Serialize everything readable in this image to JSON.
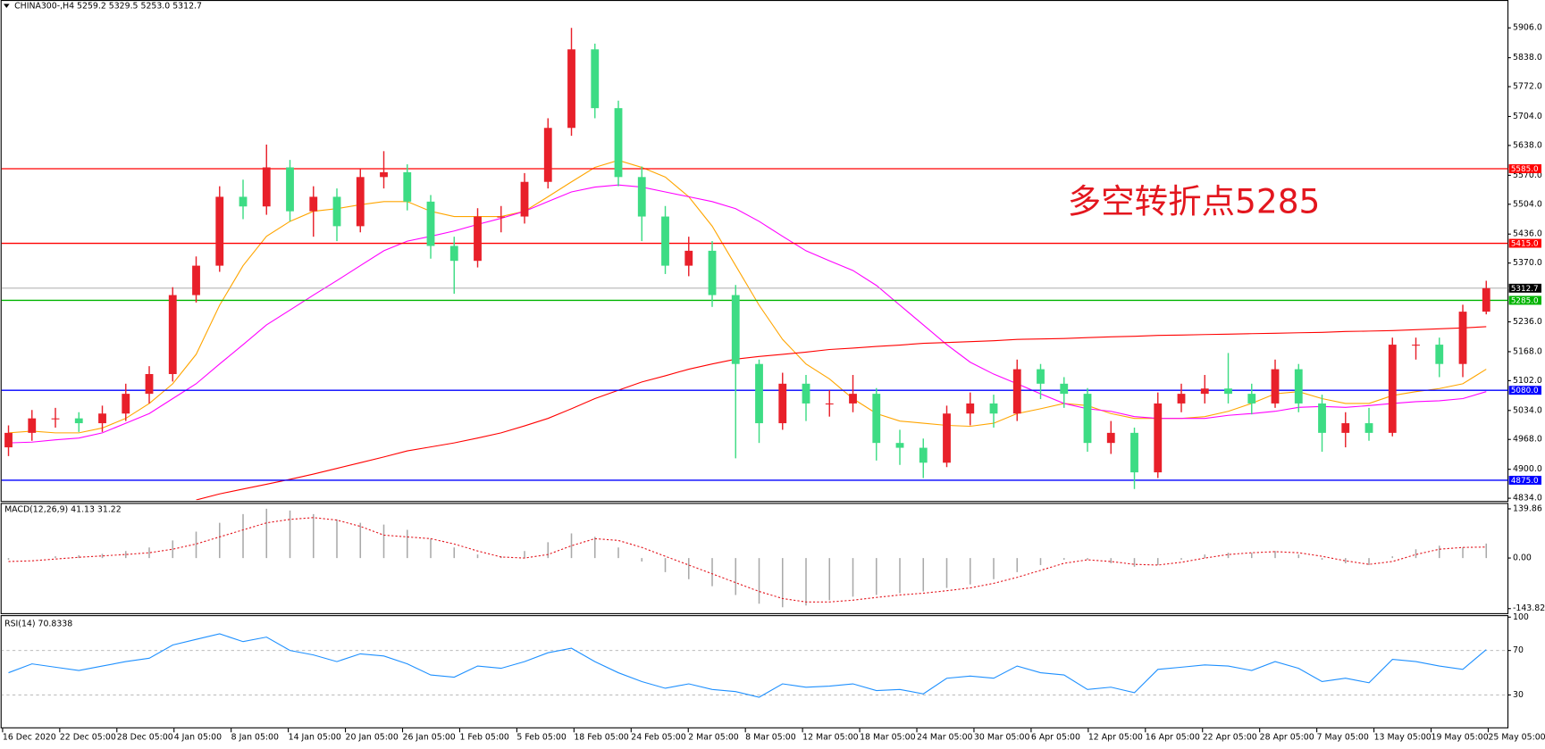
{
  "chart_data": [
    {
      "type": "candlestick",
      "title": "CHINA300-,H4  5259.2 5329.5 5253.0 5312.7",
      "annotation": "多空转折点5285",
      "x_labels": [
        "16 Dec 2020",
        "22 Dec 05:00",
        "28 Dec 05:00",
        "4 Jan 05:00",
        "8 Jan 05:00",
        "14 Jan 05:00",
        "20 Jan 05:00",
        "26 Jan 05:00",
        "1 Feb 05:00",
        "5 Feb 05:00",
        "18 Feb 05:00",
        "24 Feb 05:00",
        "2 Mar 05:00",
        "8 Mar 05:00",
        "12 Mar 05:00",
        "18 Mar 05:00",
        "24 Mar 05:00",
        "30 Mar 05:00",
        "6 Apr 05:00",
        "12 Apr 05:00",
        "16 Apr 05:00",
        "22 Apr 05:00",
        "28 Apr 05:00",
        "7 May 05:00",
        "13 May 05:00",
        "19 May 05:00",
        "25 May 05:00"
      ],
      "up_color": "#e8202a",
      "down_color": "#3ddc84",
      "open": [
        4950,
        4983,
        5016,
        5016,
        5005,
        5027,
        5072,
        5117,
        5297,
        5364,
        5521,
        5499,
        5588,
        5488,
        5521,
        5454,
        5566,
        5577,
        5510,
        5409,
        5375,
        5476,
        5476,
        5555,
        5678,
        5857,
        5723,
        5566,
        5476,
        5364,
        5398,
        5297,
        5140,
        5005,
        5095,
        5050,
        5050,
        5072,
        4960,
        4949,
        4915,
        5027,
        5050,
        5027,
        5128,
        5095,
        5072,
        4960,
        4983,
        4893,
        5050,
        5072,
        5084,
        5072,
        5050,
        5128,
        5050,
        4983,
        5005,
        4983,
        5184,
        5184,
        5140,
        5259.2
      ],
      "high": [
        5000,
        5035,
        5040,
        5030,
        5045,
        5095,
        5135,
        5315,
        5385,
        5545,
        5560,
        5640,
        5605,
        5545,
        5540,
        5585,
        5625,
        5595,
        5525,
        5430,
        5495,
        5500,
        5575,
        5700,
        5906,
        5870,
        5740,
        5590,
        5500,
        5430,
        5420,
        5320,
        5150,
        5120,
        5115,
        5080,
        5115,
        5085,
        4990,
        4970,
        5045,
        5075,
        5070,
        5150,
        5140,
        5110,
        5085,
        5010,
        4995,
        5075,
        5095,
        5115,
        5165,
        5095,
        5150,
        5140,
        5070,
        5030,
        5040,
        5200,
        5200,
        5200,
        5275,
        5329.5
      ],
      "low": [
        4930,
        4965,
        4995,
        4985,
        4985,
        5010,
        5050,
        5100,
        5280,
        5350,
        5470,
        5480,
        5465,
        5430,
        5420,
        5440,
        5540,
        5490,
        5380,
        5300,
        5360,
        5440,
        5460,
        5540,
        5660,
        5700,
        5545,
        5420,
        5345,
        5340,
        5270,
        4925,
        4960,
        4990,
        5010,
        5020,
        5030,
        4920,
        4910,
        4880,
        4905,
        5000,
        4995,
        5010,
        5060,
        5040,
        4940,
        4935,
        4855,
        4880,
        5030,
        5050,
        5050,
        5025,
        5040,
        5030,
        4940,
        4950,
        4965,
        4975,
        5150,
        5110,
        5110,
        5253
      ],
      "close": [
        4983,
        5016,
        5016,
        5005,
        5027,
        5072,
        5117,
        5297,
        5364,
        5521,
        5499,
        5588,
        5488,
        5521,
        5454,
        5566,
        5577,
        5510,
        5409,
        5375,
        5476,
        5476,
        5555,
        5678,
        5857,
        5723,
        5566,
        5476,
        5364,
        5398,
        5297,
        5140,
        5005,
        5095,
        5050,
        5050,
        5072,
        4960,
        4949,
        4915,
        5027,
        5050,
        5027,
        5128,
        5095,
        5072,
        4960,
        4983,
        4893,
        5050,
        5072,
        5084,
        5072,
        5050,
        5128,
        5050,
        4983,
        5005,
        4983,
        5184,
        5184,
        5140,
        5259.2,
        5312.7
      ],
      "moving_averages": [
        {
          "color": "#ffa500",
          "values": [
            4983,
            4987,
            4983,
            4983,
            4994,
            5016,
            5050,
            5095,
            5162,
            5274,
            5364,
            5431,
            5465,
            5488,
            5494,
            5503,
            5510,
            5510,
            5488,
            5476,
            5476,
            5476,
            5488,
            5521,
            5555,
            5588,
            5604,
            5588,
            5566,
            5521,
            5454,
            5364,
            5274,
            5196,
            5140,
            5106,
            5061,
            5027,
            5010,
            5005,
            5000,
            4998,
            5005,
            5027,
            5038,
            5050,
            5045,
            5027,
            5016,
            5016,
            5016,
            5020,
            5032,
            5050,
            5072,
            5077,
            5061,
            5050,
            5050,
            5068,
            5077,
            5084,
            5095,
            5128
          ]
        },
        {
          "color": "#ff00ff",
          "values": [
            4960,
            4962,
            4967,
            4971,
            4983,
            5005,
            5027,
            5061,
            5095,
            5140,
            5184,
            5229,
            5263,
            5297,
            5330,
            5364,
            5398,
            5420,
            5431,
            5443,
            5458,
            5472,
            5488,
            5510,
            5532,
            5543,
            5548,
            5543,
            5532,
            5521,
            5510,
            5494,
            5465,
            5431,
            5398,
            5375,
            5353,
            5319,
            5274,
            5229,
            5184,
            5144,
            5117,
            5095,
            5072,
            5050,
            5038,
            5032,
            5020,
            5016,
            5016,
            5016,
            5023,
            5027,
            5032,
            5041,
            5043,
            5041,
            5045,
            5050,
            5054,
            5056,
            5061,
            5077
          ]
        },
        {
          "color": "#ff0000",
          "values": [
            null,
            null,
            null,
            null,
            null,
            null,
            null,
            null,
            4830,
            4844,
            4855,
            4866,
            4877,
            4889,
            4902,
            4915,
            4928,
            4942,
            4951,
            4960,
            4971,
            4983,
            4999,
            5016,
            5038,
            5061,
            5080,
            5099,
            5113,
            5128,
            5140,
            5151,
            5157,
            5162,
            5167,
            5173,
            5176,
            5180,
            5183,
            5187,
            5189,
            5191,
            5193,
            5196,
            5197,
            5198,
            5200,
            5202,
            5203,
            5205,
            5206,
            5207,
            5208,
            5209,
            5210,
            5211,
            5212,
            5214,
            5215,
            5216,
            5218,
            5220,
            5222,
            5225
          ]
        }
      ],
      "levels": [
        {
          "value": 5585,
          "label": "5585.0",
          "color": "#ff0000"
        },
        {
          "value": 5415,
          "label": "5415.0",
          "color": "#ff0000"
        },
        {
          "value": 5285,
          "label": "5285.0",
          "color": "#00b400"
        },
        {
          "value": 5080,
          "label": "5080.0",
          "color": "#0000ff"
        },
        {
          "value": 4875,
          "label": "4875.0",
          "color": "#0000ff"
        }
      ],
      "current_price": {
        "value": 5312.7,
        "label": "5312.7",
        "color": "#000000"
      },
      "ylim": [
        4830,
        5965
      ],
      "yticks": [
        {
          "value": 5906,
          "label": "5906.0"
        },
        {
          "value": 5838,
          "label": "5838.0"
        },
        {
          "value": 5772,
          "label": "5772.0"
        },
        {
          "value": 5704,
          "label": "5704.0"
        },
        {
          "value": 5638,
          "label": "5638.0"
        },
        {
          "value": 5570,
          "label": "5570.0"
        },
        {
          "value": 5504,
          "label": "5504.0"
        },
        {
          "value": 5436,
          "label": "5436.0"
        },
        {
          "value": 5370,
          "label": "5370.0"
        },
        {
          "value": 5236,
          "label": "5236.0"
        },
        {
          "value": 5168,
          "label": "5168.0"
        },
        {
          "value": 5102,
          "label": "5102.0"
        },
        {
          "value": 5034,
          "label": "5034.0"
        },
        {
          "value": 4968,
          "label": "4968.0"
        },
        {
          "value": 4900,
          "label": "4900.0"
        },
        {
          "value": 4834,
          "label": "4834.0"
        }
      ]
    },
    {
      "type": "macd",
      "title": "MACD(12,26,9) 41.13 31.22",
      "histogram_color": "#a9a9a9",
      "signal_color": "#e3161e",
      "histogram": [
        -5,
        0,
        5,
        8,
        12,
        20,
        30,
        50,
        75,
        100,
        125,
        140,
        135,
        125,
        110,
        100,
        95,
        80,
        55,
        30,
        10,
        5,
        20,
        45,
        70,
        60,
        30,
        -10,
        -40,
        -60,
        -80,
        -105,
        -130,
        -140,
        -135,
        -120,
        -110,
        -105,
        -100,
        -95,
        -85,
        -75,
        -60,
        -40,
        -20,
        -5,
        -5,
        -15,
        -25,
        -20,
        -5,
        10,
        15,
        15,
        20,
        10,
        -5,
        -15,
        -20,
        5,
        25,
        35,
        30,
        41.13
      ],
      "signal": [
        -10,
        -8,
        -3,
        2,
        6,
        10,
        15,
        25,
        40,
        60,
        80,
        100,
        110,
        115,
        108,
        90,
        65,
        60,
        55,
        40,
        20,
        3,
        0,
        10,
        35,
        55,
        50,
        30,
        5,
        -20,
        -45,
        -70,
        -95,
        -115,
        -125,
        -125,
        -120,
        -112,
        -105,
        -100,
        -93,
        -85,
        -72,
        -55,
        -35,
        -15,
        -5,
        -10,
        -18,
        -20,
        -12,
        0,
        10,
        15,
        18,
        15,
        5,
        -8,
        -18,
        -10,
        10,
        25,
        30,
        31.22
      ],
      "ylim": [
        -154,
        151
      ],
      "yticks": [
        {
          "value": 139.86,
          "label": "139.86"
        },
        {
          "value": 0,
          "label": "0.00"
        },
        {
          "value": -143.82,
          "label": "-143.82"
        }
      ]
    },
    {
      "type": "line",
      "title": "RSI(14) 70.8338",
      "color": "#1e90ff",
      "values": [
        50,
        58,
        55,
        52,
        56,
        60,
        63,
        75,
        80,
        85,
        78,
        82,
        70,
        66,
        60,
        67,
        65,
        58,
        48,
        46,
        56,
        54,
        60,
        68,
        72,
        60,
        50,
        42,
        36,
        40,
        35,
        33,
        28,
        40,
        37,
        38,
        40,
        34,
        35,
        31,
        45,
        47,
        45,
        56,
        50,
        48,
        35,
        37,
        32,
        53,
        55,
        57,
        56,
        52,
        60,
        54,
        42,
        45,
        41,
        62,
        60,
        56,
        53,
        70.8338
      ],
      "levels": [
        70,
        30
      ],
      "ylim": [
        0,
        100
      ],
      "yticks": [
        100,
        70,
        30
      ]
    }
  ]
}
